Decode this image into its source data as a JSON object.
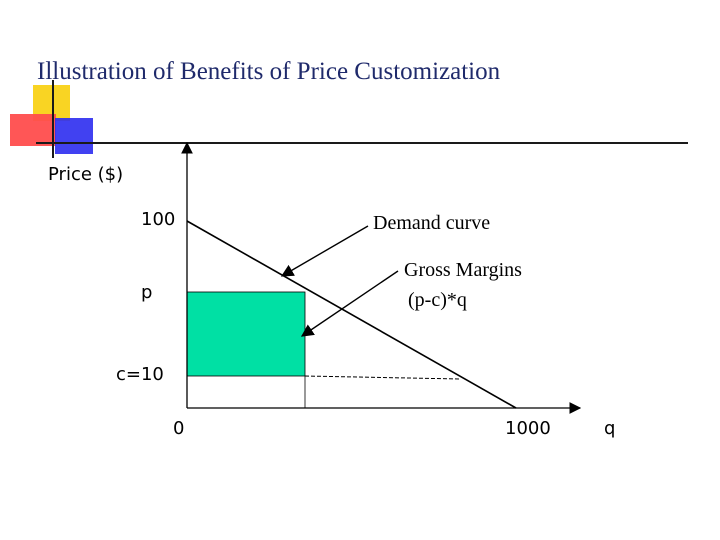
{
  "title": "Illustration of Benefits of Price Customization",
  "axes": {
    "y_label": "Price ($)",
    "x_label": "q",
    "y_ticks": [
      "100",
      "p",
      "c=10"
    ],
    "x_ticks": [
      "0",
      "1000"
    ]
  },
  "annotations": {
    "demand": "Demand curve",
    "margins_line1": "Gross Margins",
    "margins_line2": "(p-c)*q"
  },
  "colors": {
    "title": "#1f2a6b",
    "margin_fill": "#00e0a4",
    "deco_yellow": "#f9d423",
    "deco_red": "#ff4d4d",
    "deco_blue": "#2c2cf0"
  }
}
